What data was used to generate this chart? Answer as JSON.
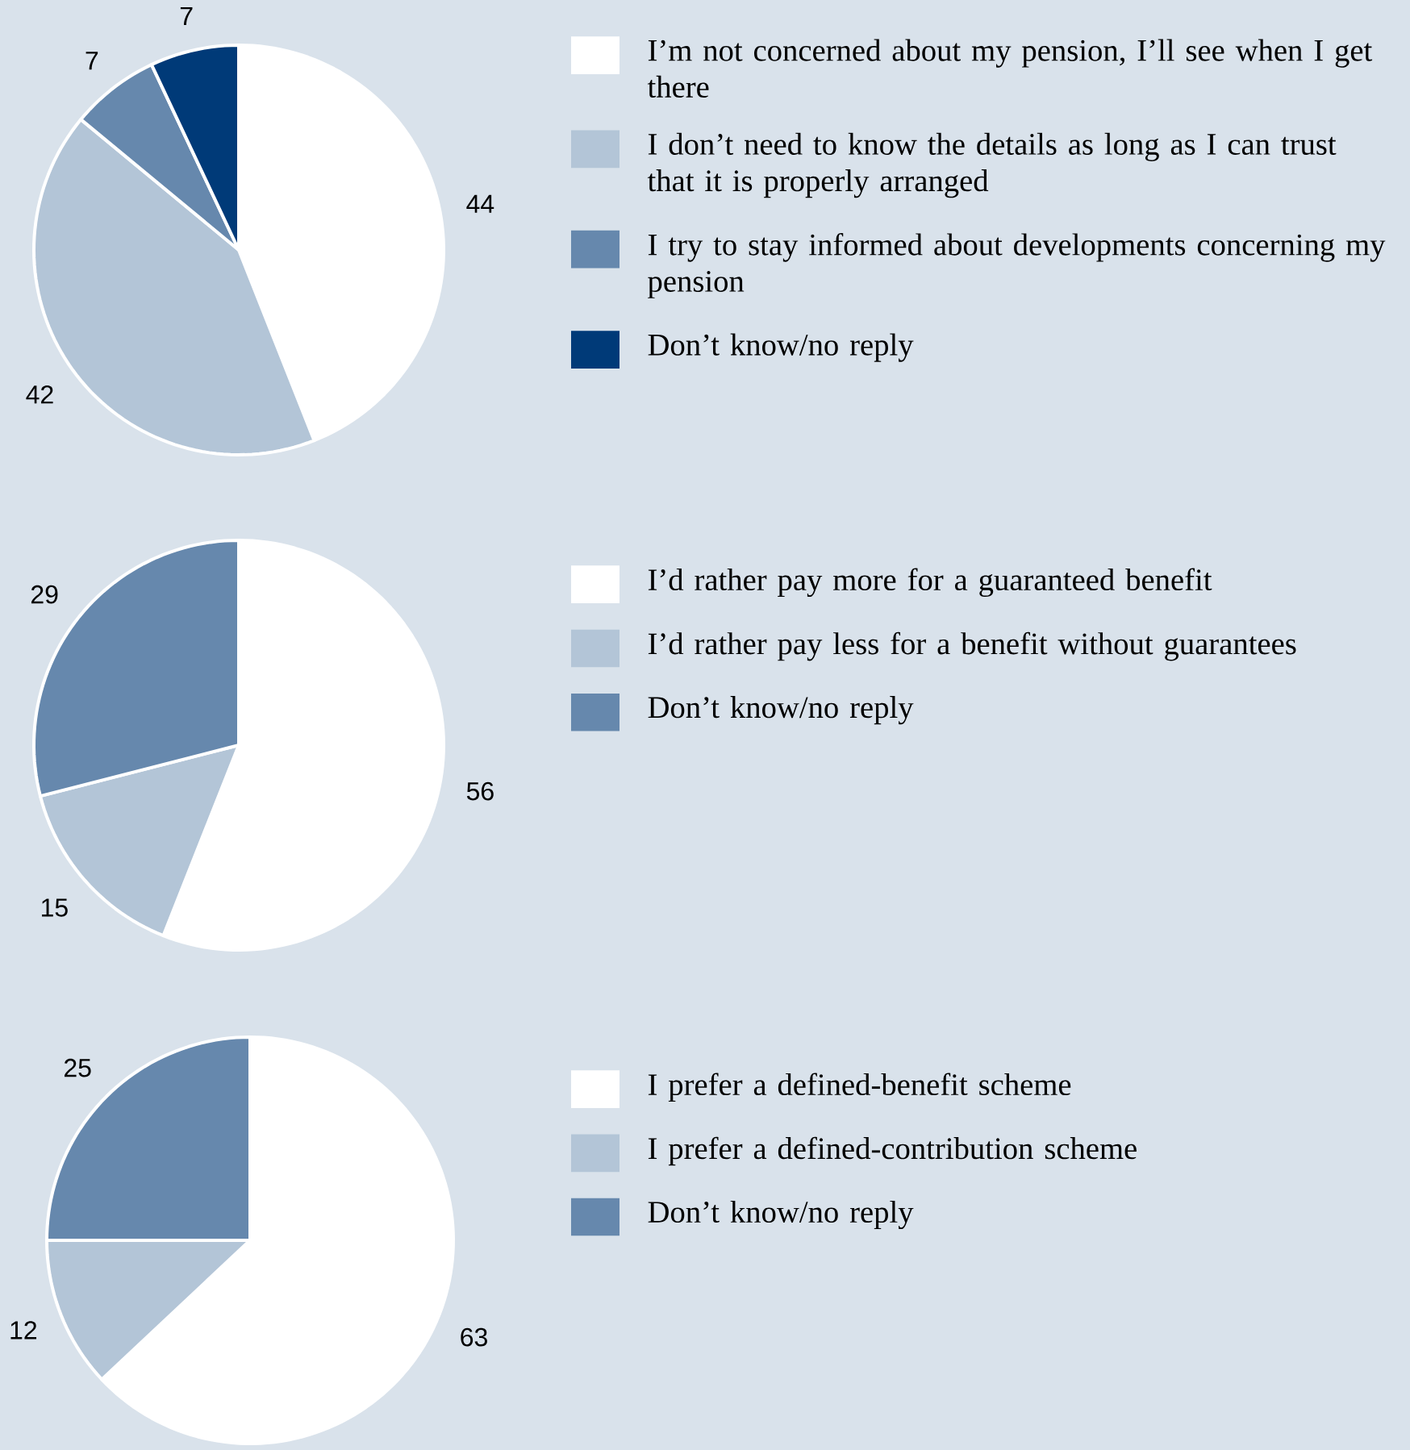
{
  "chart_data": [
    {
      "type": "pie",
      "categories": [
        "I’m not concerned about my pension, I’ll see when I get there",
        "I don’t need to know the details as long as I can trust that it is properly arranged",
        "I try to stay informed about developments concerning my pension",
        "Don’t know/no reply"
      ],
      "values": [
        44,
        42,
        7,
        7
      ],
      "colors": [
        "#ffffff",
        "#b3c5d7",
        "#6688ad",
        "#003a78"
      ],
      "data_labels": true,
      "legend": "right"
    },
    {
      "type": "pie",
      "categories": [
        "I’d rather pay more for a guaranteed benefit",
        "I’d rather pay less for a benefit without guarantees",
        "Don’t know/no reply"
      ],
      "values": [
        56,
        15,
        29
      ],
      "colors": [
        "#ffffff",
        "#b3c5d7",
        "#6688ad"
      ],
      "data_labels": true,
      "legend": "right"
    },
    {
      "type": "pie",
      "categories": [
        "I prefer a defined-benefit scheme",
        "I prefer a defined-contribution scheme",
        "Don’t know/no reply"
      ],
      "values": [
        63,
        12,
        25
      ],
      "colors": [
        "#ffffff",
        "#b3c5d7",
        "#6688ad"
      ],
      "data_labels": true,
      "legend": "right"
    }
  ]
}
